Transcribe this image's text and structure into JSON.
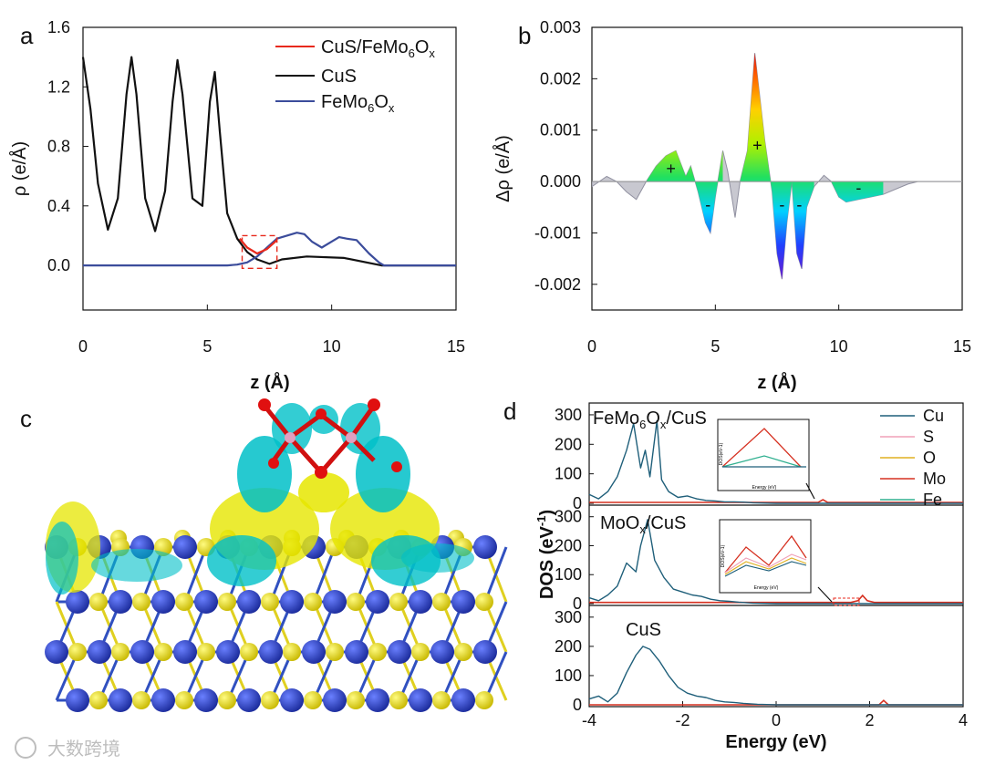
{
  "panel_labels": [
    "a",
    "b",
    "c",
    "d"
  ],
  "watermark": "大数跨境",
  "chart_data": [
    {
      "id": "a",
      "type": "line",
      "xlabel": "z (Å)",
      "ylabel": "ρ (e/Å)",
      "xlim": [
        0,
        15
      ],
      "ylim": [
        -0.3,
        1.6
      ],
      "xticks": [
        0,
        5,
        10,
        15
      ],
      "yticks": [
        0.0,
        0.4,
        0.8,
        1.2,
        1.6
      ],
      "ytick_labels": [
        "0.0",
        "0.4",
        "0.8",
        "1.2",
        "1.6"
      ],
      "legend": [
        {
          "base": "CuS/FeMo",
          "sub": "6",
          "mid": "O",
          "sub2": "x",
          "color": "#e8291c"
        },
        {
          "base": "CuS",
          "sub": "",
          "mid": "",
          "sub2": "",
          "color": "#111111"
        },
        {
          "base": "FeMo",
          "sub": "6",
          "mid": "O",
          "sub2": "x",
          "color": "#3b4c9b"
        }
      ],
      "series": [
        {
          "name": "CuS",
          "color": "#111111",
          "x": [
            0,
            0.3,
            0.6,
            1.0,
            1.4,
            1.75,
            1.95,
            2.15,
            2.5,
            2.9,
            3.3,
            3.6,
            3.8,
            4.0,
            4.4,
            4.8,
            5.1,
            5.3,
            5.5,
            5.8,
            6.2,
            6.6,
            7.0,
            7.5,
            8.0,
            9.0,
            10.5,
            11.7,
            12.0,
            15
          ],
          "y": [
            1.4,
            1.05,
            0.55,
            0.24,
            0.45,
            1.15,
            1.4,
            1.15,
            0.45,
            0.23,
            0.5,
            1.1,
            1.38,
            1.15,
            0.45,
            0.4,
            1.1,
            1.3,
            0.9,
            0.35,
            0.18,
            0.09,
            0.04,
            0.01,
            0.04,
            0.06,
            0.05,
            0.01,
            0,
            0
          ]
        },
        {
          "name": "FeMo6Ox",
          "color": "#3b4c9b",
          "x": [
            0,
            5.8,
            6.2,
            6.6,
            7.0,
            7.4,
            7.8,
            8.2,
            8.6,
            8.9,
            9.2,
            9.6,
            10.0,
            10.3,
            10.6,
            11.0,
            11.5,
            11.9,
            12.1,
            15
          ],
          "y": [
            0,
            0,
            0.005,
            0.02,
            0.06,
            0.12,
            0.18,
            0.2,
            0.22,
            0.21,
            0.16,
            0.12,
            0.16,
            0.19,
            0.18,
            0.17,
            0.08,
            0.02,
            0,
            0
          ]
        },
        {
          "name": "CuS/FeMo6Ox",
          "color": "#e8291c",
          "x": [
            6.3,
            6.6,
            7.0,
            7.4,
            7.8
          ],
          "y": [
            0.18,
            0.12,
            0.08,
            0.11,
            0.17
          ]
        }
      ],
      "inset_box": {
        "x": [
          6.4,
          7.8
        ],
        "y": [
          -0.02,
          0.2
        ]
      }
    },
    {
      "id": "b",
      "type": "area",
      "xlabel": "z (Å)",
      "ylabel": "Δρ (e/Å)",
      "xlim": [
        0,
        15
      ],
      "ylim": [
        -0.0025,
        0.003
      ],
      "xticks": [
        0,
        5,
        10,
        15
      ],
      "yticks": [
        -0.002,
        -0.001,
        0.0,
        0.001,
        0.002,
        0.003
      ],
      "ytick_labels": [
        "-0.002",
        "-0.001",
        "0.000",
        "0.001",
        "0.002",
        "0.003"
      ],
      "color_range": [
        -0.0019,
        0.0025
      ],
      "x": [
        0,
        0.6,
        1.0,
        1.4,
        1.8,
        2.2,
        2.6,
        3.0,
        3.4,
        3.8,
        4.0,
        4.3,
        4.6,
        4.8,
        5.0,
        5.3,
        5.5,
        5.8,
        6.0,
        6.3,
        6.6,
        7.0,
        7.3,
        7.5,
        7.7,
        7.9,
        8.1,
        8.3,
        8.5,
        8.7,
        9.0,
        9.4,
        9.7,
        10.0,
        10.3,
        10.8,
        11.3,
        11.8,
        12.3,
        12.8,
        13.2,
        15
      ],
      "y": [
        -0.0001,
        0.0001,
        0.0,
        -0.0002,
        -0.00035,
        0.0,
        0.0003,
        0.0005,
        0.0006,
        0.0001,
        0.0003,
        -0.0002,
        -0.0008,
        -0.001,
        -0.0003,
        0.0006,
        0.0002,
        -0.0007,
        0.0,
        0.0006,
        0.0025,
        0.0008,
        -0.0002,
        -0.0014,
        -0.0019,
        -0.0008,
        0.0,
        -0.0014,
        -0.0017,
        -0.0005,
        -0.0001,
        0.00012,
        0.0,
        -0.0003,
        -0.0004,
        -0.00035,
        -0.0003,
        -0.00025,
        -0.00015,
        -5e-05,
        0.0,
        0.0
      ],
      "annotations": [
        {
          "text": "+",
          "x": 3.2,
          "y": 0.00025
        },
        {
          "text": "-",
          "x": 4.7,
          "y": -0.00045
        },
        {
          "text": "+",
          "x": 6.7,
          "y": 0.0007
        },
        {
          "text": "-",
          "x": 7.7,
          "y": -0.00045
        },
        {
          "text": "-",
          "x": 8.4,
          "y": -0.00045
        },
        {
          "text": "-",
          "x": 10.8,
          "y": -0.00012
        }
      ]
    },
    {
      "id": "d",
      "type": "line",
      "xlabel": "Energy (eV)",
      "ylabel": "DOS (eV",
      "ylabel_sup": "-1",
      "ylabel_end": ")",
      "xlim": [
        -4,
        4
      ],
      "xticks": [
        -4,
        -2,
        0,
        2,
        4
      ],
      "yticks": [
        0,
        100,
        200,
        300
      ],
      "legend": [
        {
          "name": "Cu",
          "color": "#1f5f7a"
        },
        {
          "name": "S",
          "color": "#f0a0b8"
        },
        {
          "name": "O",
          "color": "#e0b020"
        },
        {
          "name": "Mo",
          "color": "#d63020"
        },
        {
          "name": "Fe",
          "color": "#30b090"
        }
      ],
      "panels": [
        {
          "label_base": "FeMo",
          "label_sub": "6",
          "label_mid": "O",
          "label_sub2": "x",
          "label_end": "/CuS",
          "cu_x": [
            -4,
            -3.8,
            -3.6,
            -3.4,
            -3.2,
            -3.05,
            -2.9,
            -2.8,
            -2.7,
            -2.55,
            -2.45,
            -2.3,
            -2.1,
            -1.9,
            -1.7,
            -1.5,
            -1.3,
            -1.1,
            -0.9,
            -0.7,
            -0.5,
            0,
            4
          ],
          "cu_y": [
            30,
            15,
            40,
            90,
            180,
            270,
            120,
            180,
            90,
            280,
            80,
            40,
            20,
            25,
            15,
            10,
            8,
            5,
            5,
            4,
            2,
            0,
            0
          ],
          "mo_x": [
            -4,
            -1,
            0,
            0.9,
            1.0,
            1.1,
            2.0,
            4
          ],
          "mo_y": [
            3,
            3,
            3,
            3,
            12,
            3,
            3,
            3
          ]
        },
        {
          "label_base": "MoO",
          "label_sub": "x",
          "label_mid": "",
          "label_sub2": "",
          "label_end": "/CuS",
          "cu_x": [
            -4,
            -3.8,
            -3.6,
            -3.4,
            -3.2,
            -3.0,
            -2.9,
            -2.75,
            -2.6,
            -2.4,
            -2.2,
            -2.0,
            -1.8,
            -1.6,
            -1.4,
            -1.2,
            -1.0,
            -0.8,
            -0.5,
            0,
            4
          ],
          "cu_y": [
            20,
            10,
            30,
            60,
            140,
            110,
            200,
            290,
            150,
            90,
            50,
            40,
            30,
            25,
            15,
            10,
            8,
            5,
            2,
            0,
            0
          ],
          "mo_x": [
            -4,
            1.6,
            1.75,
            1.85,
            1.95,
            2.1,
            4
          ],
          "mo_y": [
            4,
            4,
            10,
            28,
            10,
            4,
            4
          ]
        },
        {
          "label_base": "CuS",
          "label_sub": "",
          "label_mid": "",
          "label_sub2": "",
          "label_end": "",
          "cu_x": [
            -4,
            -3.8,
            -3.6,
            -3.4,
            -3.2,
            -3.0,
            -2.85,
            -2.7,
            -2.5,
            -2.3,
            -2.1,
            -1.9,
            -1.7,
            -1.5,
            -1.3,
            -1.1,
            -0.9,
            -0.7,
            -0.4,
            0,
            4
          ],
          "cu_y": [
            20,
            30,
            10,
            40,
            110,
            170,
            200,
            190,
            150,
            100,
            60,
            40,
            30,
            25,
            15,
            10,
            8,
            5,
            2,
            0,
            0
          ],
          "mo_x": [
            -4,
            2.2,
            2.3,
            2.4,
            4
          ],
          "mo_y": [
            0,
            0,
            15,
            0,
            0
          ]
        }
      ],
      "inset_xlabel": "Energy (eV)",
      "inset_ylabel": "DOS(eV-1)"
    }
  ]
}
